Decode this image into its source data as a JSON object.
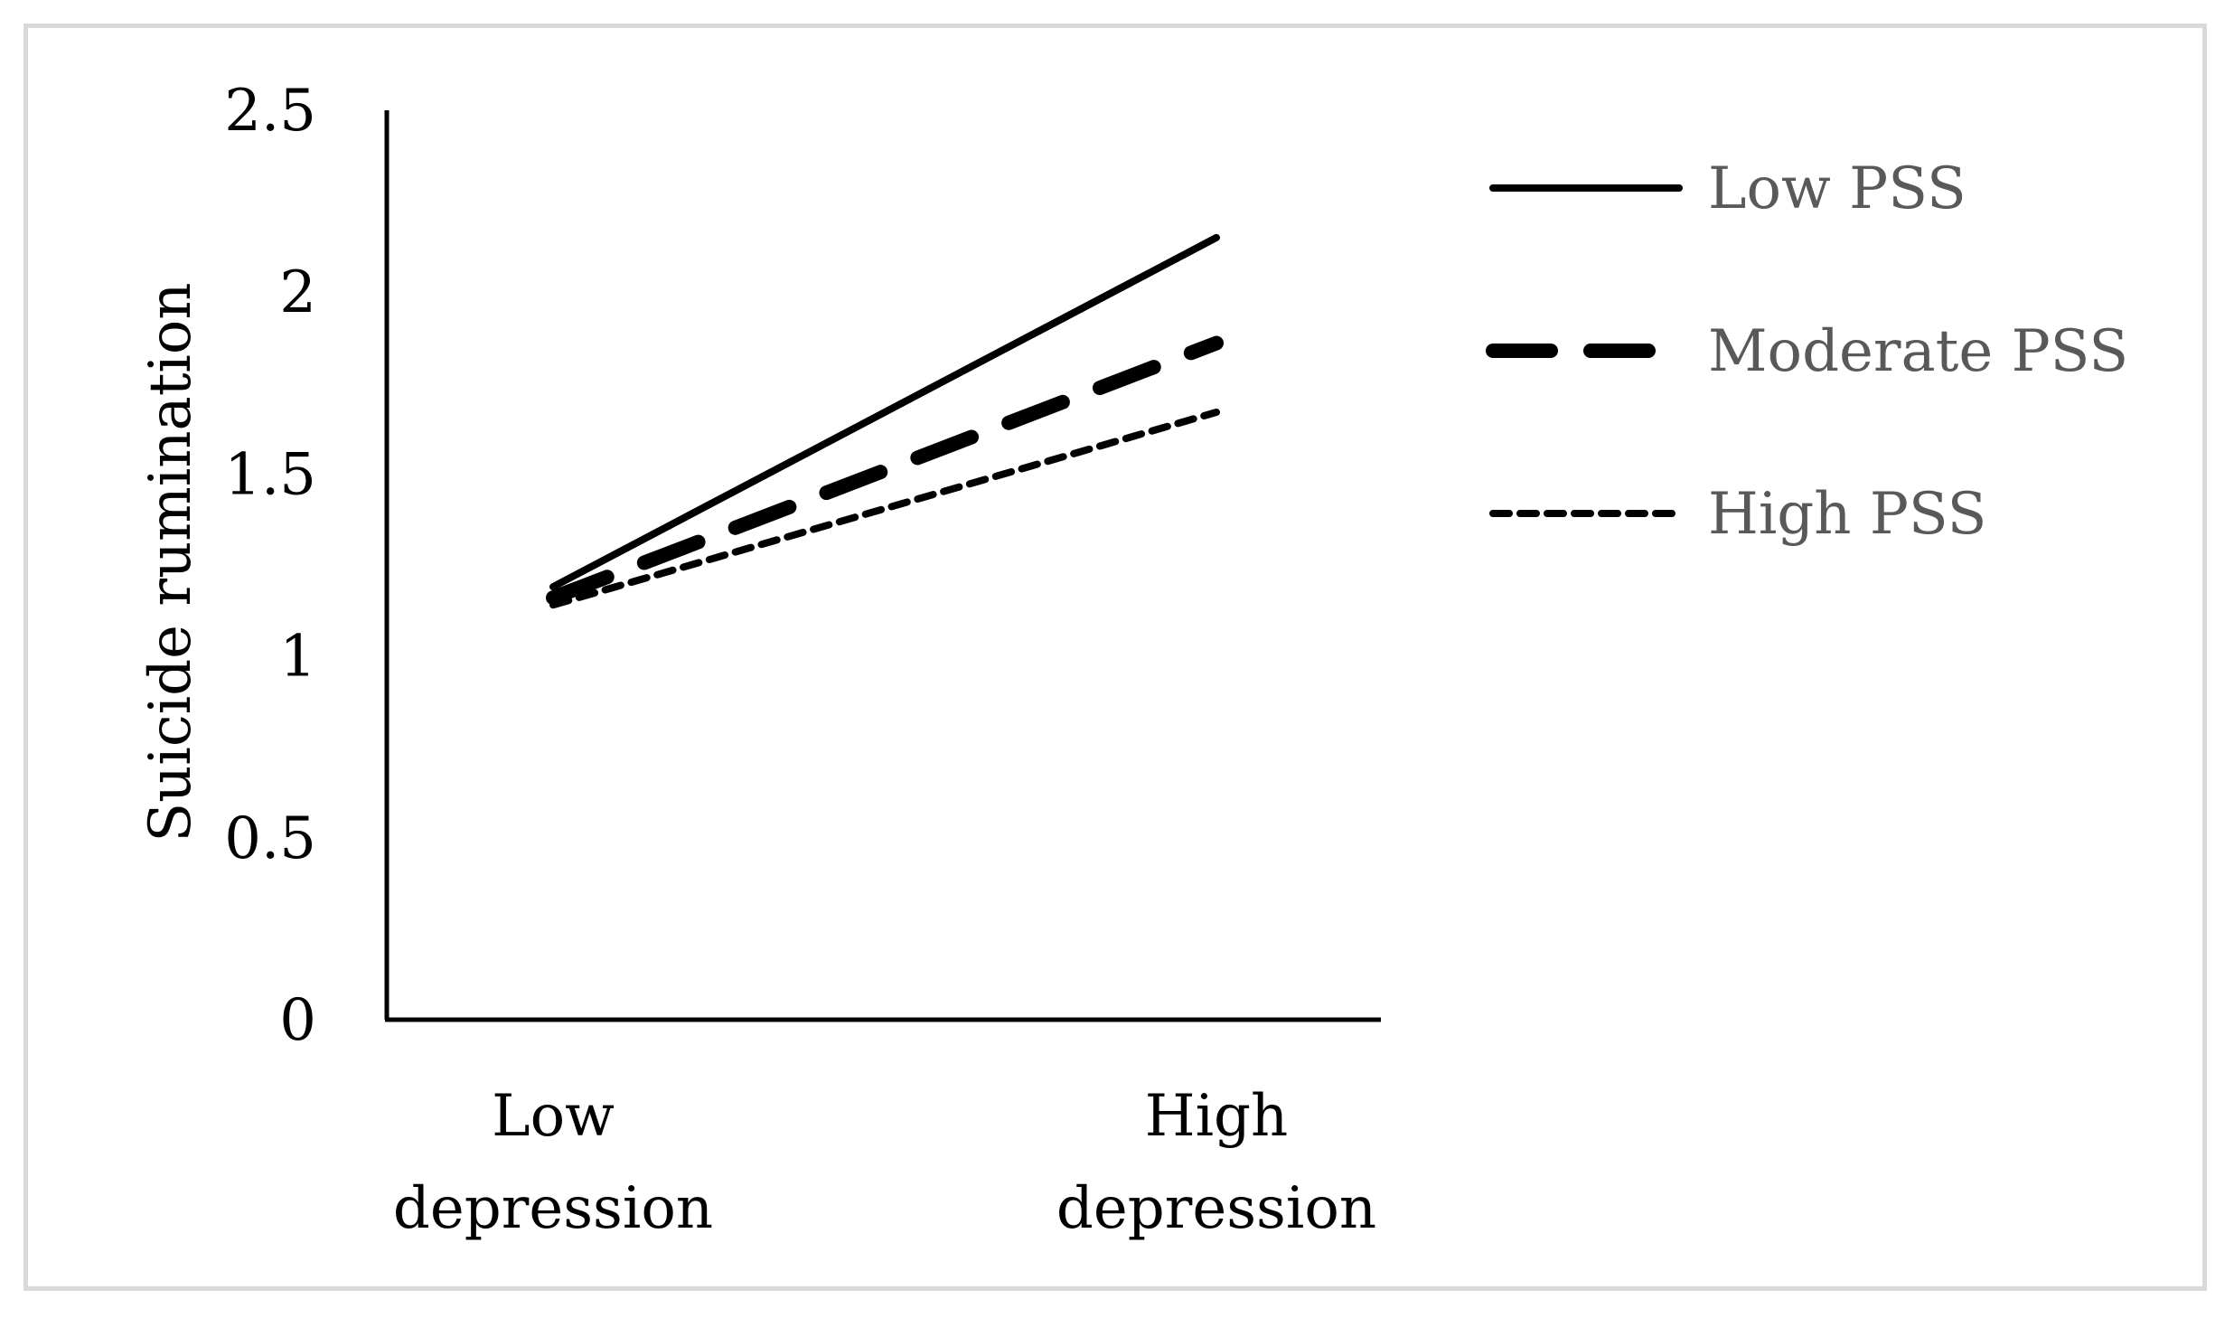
{
  "chart_data": {
    "type": "line",
    "title": "",
    "xlabel": "",
    "ylabel": "Suicide rumination",
    "categories": [
      [
        "Low",
        "depression"
      ],
      [
        "High",
        "depression"
      ]
    ],
    "ylim": [
      0,
      2.5
    ],
    "yticks": [
      "0",
      "0.5",
      "1",
      "1.5",
      "2",
      "2.5"
    ],
    "ytick_values": [
      0,
      0.5,
      1,
      1.5,
      2,
      2.5
    ],
    "grid": false,
    "legend_position": "right",
    "series": [
      {
        "name": "Low PSS",
        "values": [
          1.19,
          2.15
        ],
        "style": "solid"
      },
      {
        "name": "Moderate PSS",
        "values": [
          1.16,
          1.86
        ],
        "style": "long-dash"
      },
      {
        "name": "High PSS",
        "values": [
          1.14,
          1.67
        ],
        "style": "short-dash"
      }
    ]
  },
  "colors": {
    "line": "#000000",
    "legend_text": "#595959",
    "frame": "#d9d9d9"
  }
}
